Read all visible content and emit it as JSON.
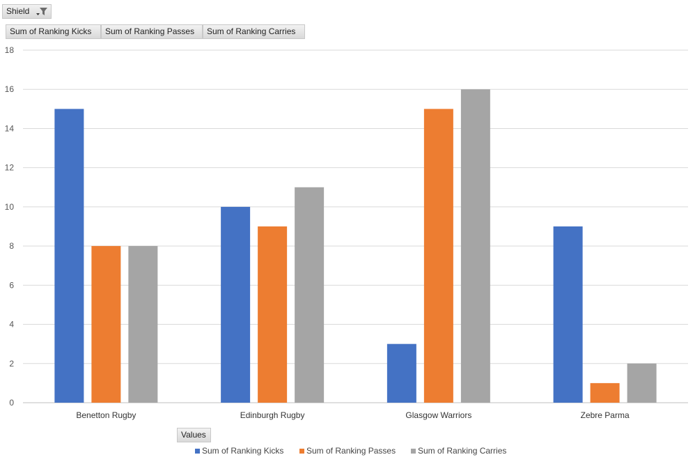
{
  "filter_field": {
    "label": "Shield",
    "icon": "filter-dropdown-icon"
  },
  "series_fields": [
    {
      "label": "Sum of Ranking Kicks"
    },
    {
      "label": "Sum of Ranking Passes"
    },
    {
      "label": "Sum of Ranking Carries"
    }
  ],
  "values_field": {
    "label": "Values"
  },
  "chart_data": {
    "type": "bar",
    "categories": [
      "Benetton Rugby",
      "Edinburgh Rugby",
      "Glasgow Warriors",
      "Zebre Parma"
    ],
    "series": [
      {
        "name": "Sum of Ranking Kicks",
        "color": "#4472c4",
        "values": [
          15,
          10,
          3,
          9
        ]
      },
      {
        "name": "Sum of Ranking Passes",
        "color": "#ed7d31",
        "values": [
          8,
          9,
          15,
          1
        ]
      },
      {
        "name": "Sum of Ranking Carries",
        "color": "#a5a5a5",
        "values": [
          8,
          11,
          16,
          2
        ]
      }
    ],
    "title": "",
    "xlabel": "",
    "ylabel": "",
    "ylim": [
      0,
      18
    ],
    "yticks": [
      0,
      2,
      4,
      6,
      8,
      10,
      12,
      14,
      16,
      18
    ],
    "grid": true,
    "legend": "bottom"
  }
}
